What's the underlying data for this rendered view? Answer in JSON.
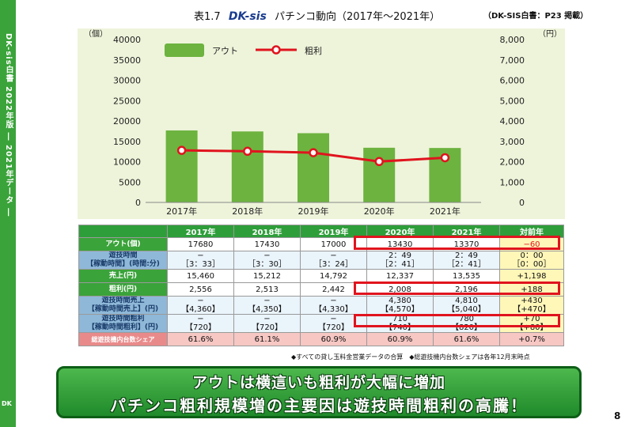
{
  "sidebar": {
    "text": "DK-sis白書 2022年版 ― 2021年データ ―",
    "logo": "DK"
  },
  "header": {
    "table_no": "表1.7",
    "logo": "DK-sis",
    "title": "パチンコ動向（2017年～2021年）",
    "source": "（DK-SIS白書：P23 掲載）"
  },
  "chart_data": {
    "type": "bar",
    "categories": [
      "2017年",
      "2018年",
      "2019年",
      "2020年",
      "2021年"
    ],
    "series": [
      {
        "name": "アウト",
        "kind": "bar",
        "axis": "left",
        "values": [
          17680,
          17430,
          17000,
          13430,
          13370
        ],
        "color": "#6db33f"
      },
      {
        "name": "粗利",
        "kind": "line",
        "axis": "right",
        "values": [
          2556,
          2513,
          2442,
          2008,
          2196
        ],
        "color": "#e0141e"
      }
    ],
    "y_left": {
      "unit": "（個）",
      "ticks": [
        "0",
        "5000",
        "10000",
        "15000",
        "20000",
        "25000",
        "30000",
        "35000",
        "40000"
      ],
      "ylim": [
        0,
        40000
      ]
    },
    "y_right": {
      "unit": "（円）",
      "ticks": [
        "0",
        "1,000",
        "2,000",
        "3,000",
        "4,000",
        "5,000",
        "6,000",
        "7,000",
        "8,000"
      ],
      "ylim": [
        0,
        8000
      ]
    },
    "legend_placement": "top-left",
    "background": "#eef4da"
  },
  "table": {
    "headers": [
      "",
      "2017年",
      "2018年",
      "2019年",
      "2020年",
      "2021年",
      "対前年"
    ],
    "rows": [
      {
        "label": "アウト(個)",
        "cells": [
          "17680",
          "17430",
          "17000",
          "13430",
          "13370"
        ],
        "diff": "−60"
      },
      {
        "label": "遊技時間",
        "label2": "【稼動時間】(時間:分)",
        "cells": [
          "−",
          "−",
          "−",
          "2：49",
          "2：49"
        ],
        "cells2": [
          "［3：33］",
          "［3：30］",
          "［3：24］",
          "［2：41］",
          "［2：41］"
        ],
        "diff": "0：00",
        "diff2": "［0：00］"
      },
      {
        "label": "売上(円)",
        "cells": [
          "15,460",
          "15,212",
          "14,792",
          "12,337",
          "13,535"
        ],
        "diff": "+1,198"
      },
      {
        "label": "粗利(円)",
        "cells": [
          "2,556",
          "2,513",
          "2,442",
          "2,008",
          "2,196"
        ],
        "diff": "+188"
      },
      {
        "label": "遊技時間売上",
        "label2": "【稼動時間売上】(円)",
        "cells": [
          "−",
          "−",
          "−",
          "4,380",
          "4,810"
        ],
        "cells2": [
          "【4,360】",
          "【4,350】",
          "【4,330】",
          "【4,570】",
          "【5,040】"
        ],
        "diff": "+430",
        "diff2": "【+470】"
      },
      {
        "label": "遊技時間粗利",
        "label2": "【稼動時間粗利】(円)",
        "cells": [
          "−",
          "−",
          "−",
          "710",
          "780"
        ],
        "cells2": [
          "【720】",
          "【720】",
          "【720】",
          "【740】",
          "【820】"
        ],
        "diff": "+70",
        "diff2": "【+80】"
      },
      {
        "label": "総遊技機内台数シェア",
        "cells": [
          "61.6%",
          "61.1%",
          "60.9%",
          "60.9%",
          "61.6%"
        ],
        "diff": "+0.7%"
      }
    ]
  },
  "footnote": "◆すべての貸し玉料金営業データの合算　◆総遊技機内台数シェアは各年12月末時点",
  "banner": {
    "line1": "アウトは横這いも粗利が大幅に増加",
    "line2": "パチンコ粗利規模増の主要因は遊技時間粗利の高騰！"
  },
  "page_number": "8"
}
